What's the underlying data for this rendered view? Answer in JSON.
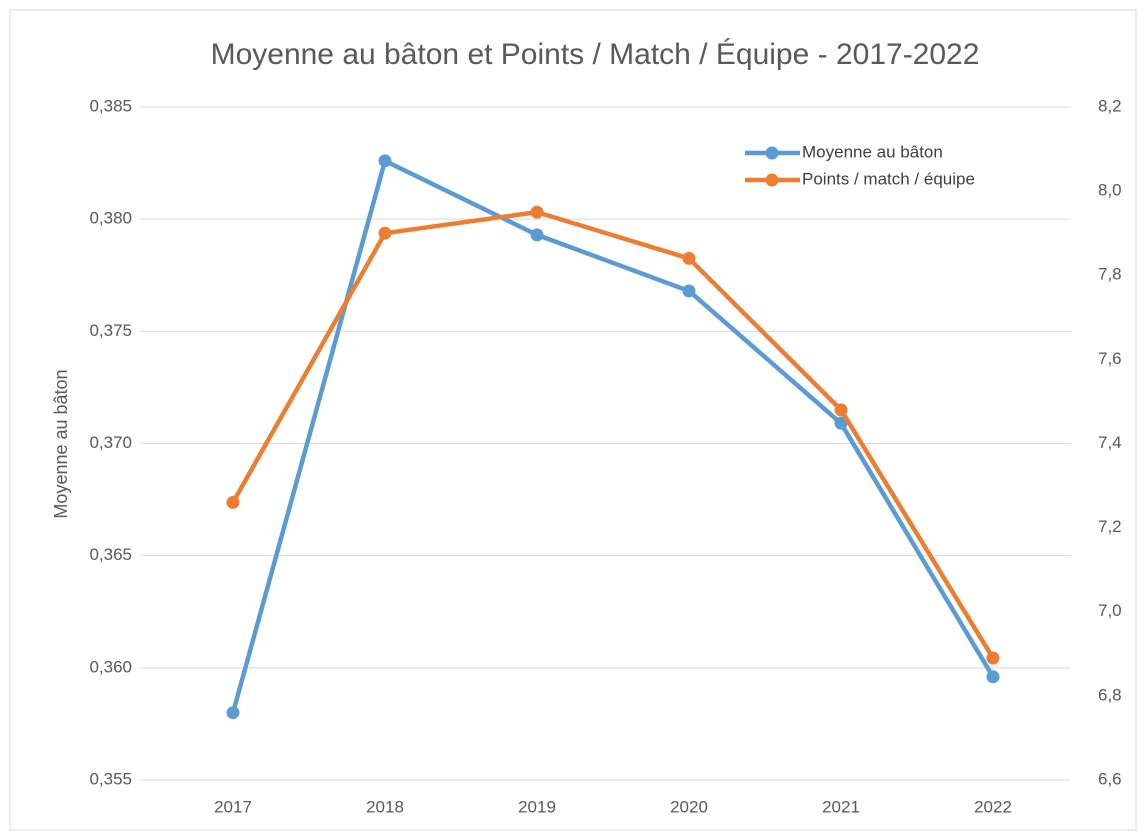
{
  "chart_data": {
    "type": "line",
    "title": "Moyenne au bâton et Points / Match / Équipe  -  2017-2022",
    "y_label": "Moyenne au bâton",
    "categories": [
      "2017",
      "2018",
      "2019",
      "2020",
      "2021",
      "2022"
    ],
    "series": [
      {
        "name": "Moyenne au bâton",
        "color": "#5b9bd5",
        "values": [
          0.358,
          0.3826,
          0.3793,
          0.3768,
          0.3709,
          0.3596
        ]
      },
      {
        "name": "Points / match / équipe",
        "color": "#ed7d31",
        "axis": "y2",
        "values": [
          7.26,
          7.9,
          7.95,
          7.84,
          7.48,
          6.89
        ]
      }
    ],
    "ylim": [
      0.355,
      0.385
    ],
    "yticks": [
      {
        "value": 0.355,
        "label": "0,355"
      },
      {
        "value": 0.36,
        "label": "0,360"
      },
      {
        "value": 0.365,
        "label": "0,365"
      },
      {
        "value": 0.37,
        "label": "0,370"
      },
      {
        "value": 0.375,
        "label": "0,375"
      },
      {
        "value": 0.38,
        "label": "0,380"
      },
      {
        "value": 0.385,
        "label": "0,385"
      }
    ],
    "y2lim": [
      6.6,
      8.2
    ],
    "y2ticks": [
      {
        "value": 6.6,
        "label": "6,6"
      },
      {
        "value": 6.8,
        "label": "6,8"
      },
      {
        "value": 7.0,
        "label": "7,0"
      },
      {
        "value": 7.2,
        "label": "7,2"
      },
      {
        "value": 7.4,
        "label": "7,4"
      },
      {
        "value": 7.6,
        "label": "7,6"
      },
      {
        "value": 7.8,
        "label": "7,8"
      },
      {
        "value": 8.0,
        "label": "8,0"
      },
      {
        "value": 8.2,
        "label": "8,2"
      }
    ],
    "grid": true,
    "legend": "top-right"
  }
}
